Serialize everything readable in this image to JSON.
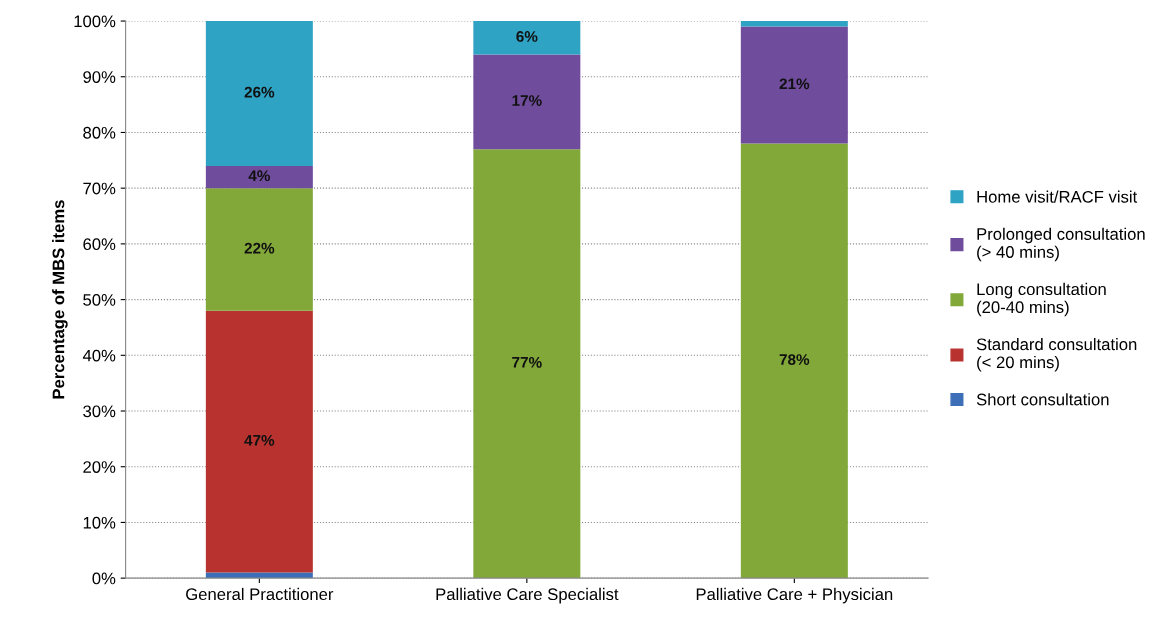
{
  "chart_data": {
    "type": "bar",
    "stacked": true,
    "ylabel": "Percentage of MBS items",
    "categories": [
      "General Practitioner",
      "Palliative Care Specialist",
      "Palliative Care + Physician"
    ],
    "series": [
      {
        "name": "Short consultation",
        "color": "#3d6fb8",
        "values": [
          1,
          0,
          0
        ],
        "value_labels": [
          null,
          null,
          null
        ]
      },
      {
        "name": "Standard consultation\n(< 20 mins)",
        "color": "#b8332f",
        "values": [
          47,
          0,
          0
        ],
        "value_labels": [
          "47%",
          null,
          null
        ]
      },
      {
        "name": "Long consultation\n(20-40 mins)",
        "color": "#82a83a",
        "values": [
          22,
          77,
          78
        ],
        "value_labels": [
          "22%",
          "77%",
          "78%"
        ]
      },
      {
        "name": "Prolonged consultation\n(> 40 mins)",
        "color": "#6f4c9c",
        "values": [
          4,
          17,
          21
        ],
        "value_labels": [
          "4%",
          "17%",
          "21%"
        ]
      },
      {
        "name": "Home visit/RACF visit",
        "color": "#2ea3c4",
        "values": [
          26,
          6,
          1
        ],
        "value_labels": [
          "26%",
          "6%",
          null
        ]
      }
    ],
    "ylim": [
      0,
      100
    ],
    "yticks": [
      {
        "value": 0,
        "label": "0%"
      },
      {
        "value": 10,
        "label": "10%"
      },
      {
        "value": 20,
        "label": "20%"
      },
      {
        "value": 30,
        "label": "30%"
      },
      {
        "value": 40,
        "label": "40%"
      },
      {
        "value": 50,
        "label": "50%"
      },
      {
        "value": 60,
        "label": "60%"
      },
      {
        "value": 70,
        "label": "70%"
      },
      {
        "value": 80,
        "label": "80%"
      },
      {
        "value": 90,
        "label": "90%"
      },
      {
        "value": 100,
        "label": "100%"
      }
    ],
    "grid": "y",
    "legend": "right"
  }
}
